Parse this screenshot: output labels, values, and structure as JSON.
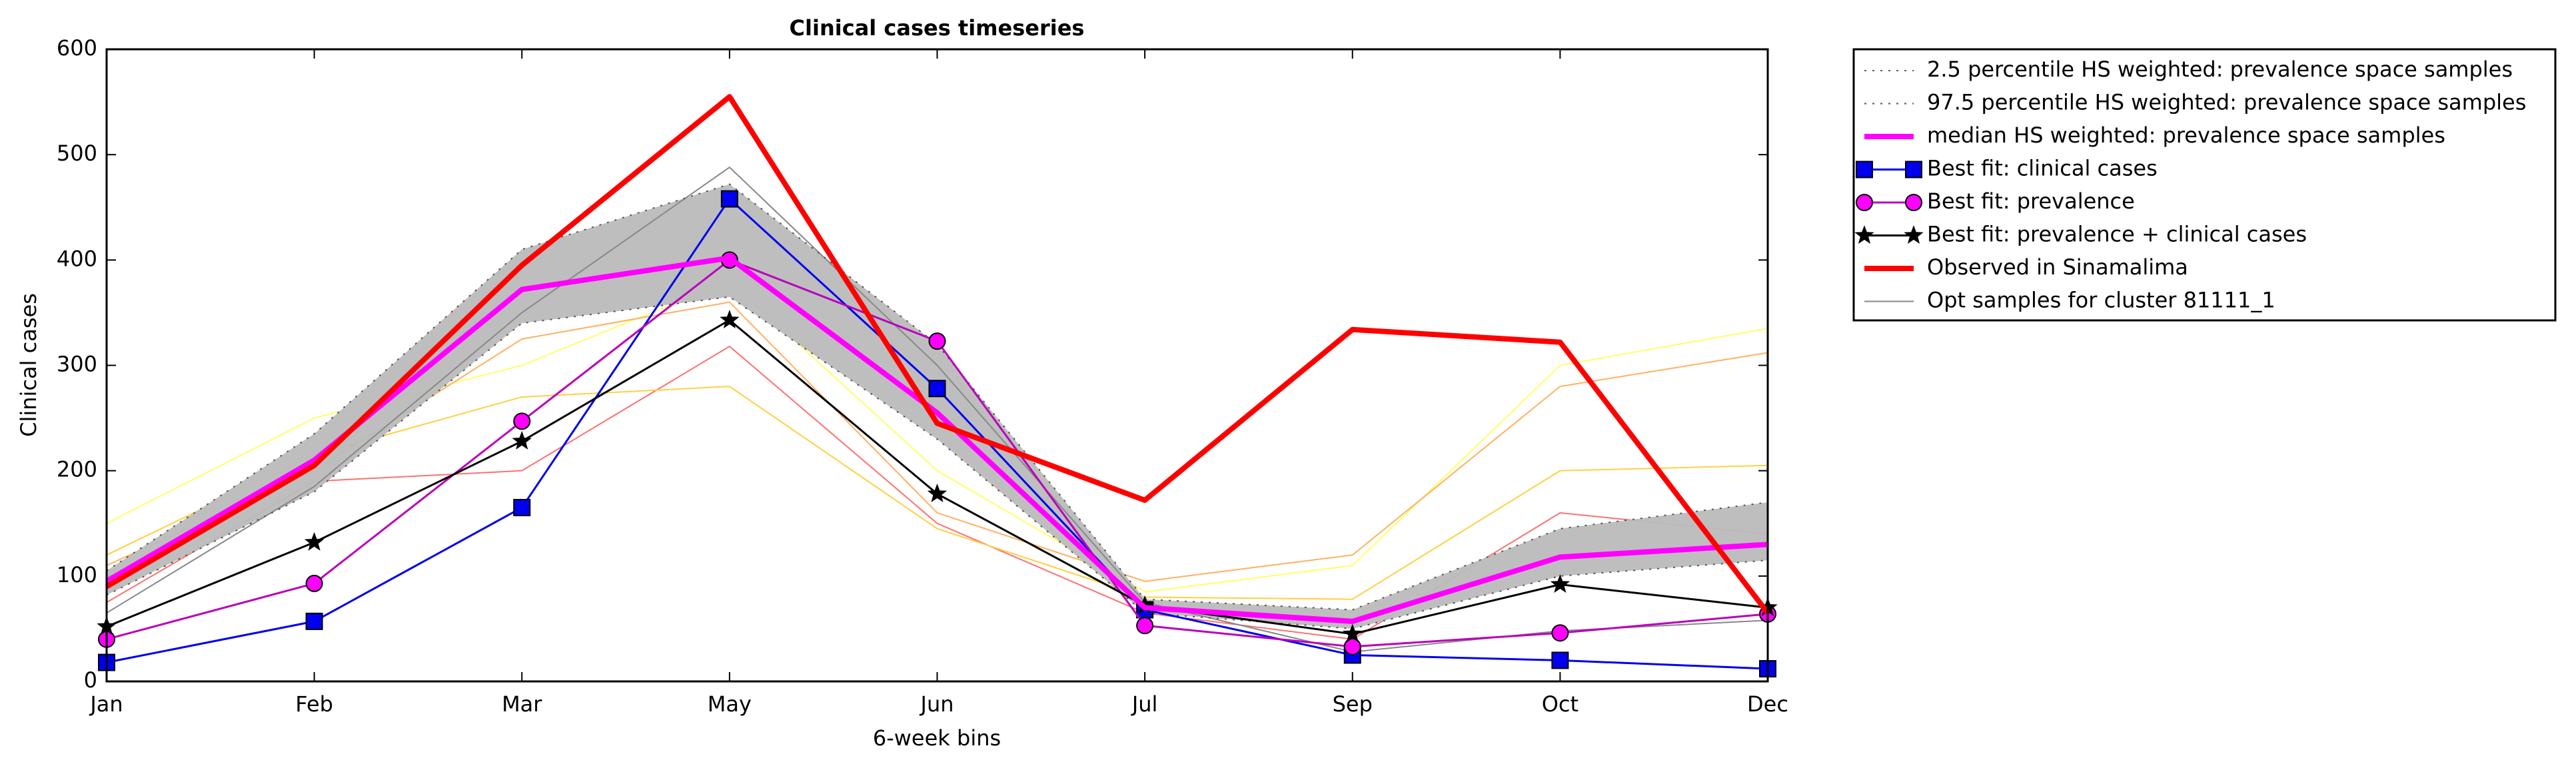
{
  "chart_data": {
    "type": "line",
    "title": "Clinical cases timeseries",
    "xlabel": "6-week bins",
    "ylabel": "Clinical cases",
    "categories": [
      "Jan",
      "Feb",
      "Mar",
      "May",
      "Jun",
      "Jul",
      "Sep",
      "Oct",
      "Dec"
    ],
    "ylim": [
      0,
      600
    ],
    "yticks": [
      0,
      100,
      200,
      300,
      400,
      500,
      600
    ],
    "band_color": "#bbbbbb",
    "background_samples": [
      {
        "color": "#ffff66",
        "values": [
          150,
          250,
          300,
          380,
          200,
          85,
          110,
          300,
          335
        ]
      },
      {
        "color": "#ffb060",
        "values": [
          110,
          200,
          325,
          360,
          160,
          95,
          120,
          280,
          312
        ]
      },
      {
        "color": "#ff7070",
        "values": [
          75,
          190,
          200,
          318,
          150,
          65,
          40,
          160,
          140
        ]
      },
      {
        "color": "#ffd040",
        "values": [
          120,
          215,
          270,
          280,
          145,
          80,
          78,
          200,
          205
        ]
      }
    ],
    "series": [
      {
        "name": "2.5 percentile HS weighted: prevalence space samples",
        "color": "#555555",
        "style": "dotted",
        "width": 2,
        "values": [
          82,
          180,
          340,
          365,
          230,
          65,
          50,
          100,
          115
        ]
      },
      {
        "name": "97.5 percentile HS weighted: prevalence space samples",
        "color": "#555555",
        "style": "dotted",
        "width": 2,
        "values": [
          105,
          235,
          410,
          472,
          320,
          78,
          68,
          145,
          170
        ]
      },
      {
        "name": "median HS weighted: prevalence space samples",
        "color": "#ff00ff",
        "style": "solid",
        "width": 8,
        "values": [
          95,
          210,
          372,
          402,
          255,
          70,
          57,
          118,
          130
        ]
      },
      {
        "name": "Best fit: clinical cases",
        "color": "#0000ee",
        "style": "solid",
        "width": 3,
        "marker": "square",
        "values": [
          18,
          57,
          165,
          458,
          278,
          68,
          25,
          20,
          12
        ]
      },
      {
        "name": "Best fit: prevalence",
        "color": "#bb00bb",
        "marker_color": "#ff00ff",
        "style": "solid",
        "width": 3,
        "marker": "circle",
        "values": [
          40,
          93,
          247,
          400,
          323,
          53,
          33,
          46,
          64
        ]
      },
      {
        "name": "Best fit: prevalence + clinical cases",
        "color": "#000000",
        "style": "solid",
        "width": 3,
        "marker": "star",
        "values": [
          52,
          132,
          228,
          343,
          178,
          72,
          45,
          92,
          70
        ]
      },
      {
        "name": "Observed in Sinamalima",
        "color": "#ff0000",
        "style": "solid",
        "width": 8,
        "values": [
          90,
          205,
          395,
          555,
          245,
          172,
          334,
          322,
          65
        ]
      },
      {
        "name": "Opt samples for cluster 81111_1",
        "color": "#888888",
        "style": "solid",
        "width": 2,
        "values": [
          65,
          185,
          350,
          488,
          300,
          75,
          28,
          48,
          58
        ]
      }
    ]
  }
}
